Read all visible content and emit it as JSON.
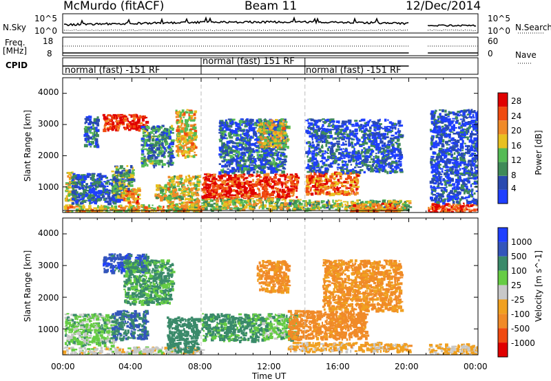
{
  "header": {
    "station": "McMurdo (fitACF)",
    "beam": "Beam 11",
    "date": "12/Dec/2014"
  },
  "top_panels": {
    "left_labels": {
      "nsky": "N.Sky",
      "freq": "Freq.",
      "mhz": "[MHz]",
      "cpid": "CPID"
    },
    "right_labels": {
      "nsearch": "N.Search",
      "nave": "Nave"
    },
    "noise_left_ticks": [
      "10^5",
      "10^0"
    ],
    "noise_right_ticks": [
      "10^5",
      "10^0"
    ],
    "freq_left_ticks": [
      "18",
      "8"
    ],
    "nave_right_ticks": [
      "60",
      "0"
    ],
    "cpid_segments": [
      {
        "label": "normal (fast) -151 RF",
        "start_hour": 0,
        "end_hour": 8
      },
      {
        "label": "normal (fast) 151 RF",
        "start_hour": 8,
        "end_hour": 14
      },
      {
        "label": "normal (fast) -151 RF",
        "start_hour": 14,
        "end_hour": 20
      }
    ]
  },
  "chart_data": [
    {
      "type": "heatmap",
      "parameter": "Power",
      "ylabel": "Slant Range [km]",
      "xlabel": "",
      "xlim_hours": [
        0,
        24
      ],
      "ylim": [
        180,
        4500
      ],
      "yticks": [
        1000,
        2000,
        3000,
        4000
      ],
      "colorbar": {
        "label": "Power [dB]",
        "ticks": [
          "4",
          "8",
          "12",
          "16",
          "20",
          "24",
          "28"
        ],
        "colors": [
          "#1f3fff",
          "#2a4ab0",
          "#3f8a58",
          "#55bb55",
          "#e8c020",
          "#f08a28",
          "#f04b10",
          "#e00000"
        ]
      },
      "data_gap_hours": [
        20,
        21.1
      ],
      "echo_regions": [
        {
          "hours": [
            0.0,
            8.0
          ],
          "range_km": [
            200,
            450
          ],
          "level": 0.6
        },
        {
          "hours": [
            0.1,
            0.6
          ],
          "range_km": [
            600,
            1500
          ],
          "level": 0.55
        },
        {
          "hours": [
            0.5,
            3.5
          ],
          "range_km": [
            500,
            1450
          ],
          "level": 0.15
        },
        {
          "hours": [
            1.2,
            2.0
          ],
          "range_km": [
            2300,
            3300
          ],
          "level": 0.2
        },
        {
          "hours": [
            2.3,
            4.8
          ],
          "range_km": [
            2850,
            3350
          ],
          "level": 0.92
        },
        {
          "hours": [
            2.8,
            4.0
          ],
          "range_km": [
            700,
            1700
          ],
          "level": 0.4
        },
        {
          "hours": [
            3.3,
            4.4
          ],
          "range_km": [
            500,
            1000
          ],
          "level": 0.7
        },
        {
          "hours": [
            4.5,
            6.3
          ],
          "range_km": [
            1700,
            3000
          ],
          "level": 0.3
        },
        {
          "hours": [
            5.3,
            6.4
          ],
          "range_km": [
            600,
            1100
          ],
          "level": 0.5
        },
        {
          "hours": [
            6.0,
            7.8
          ],
          "range_km": [
            300,
            1400
          ],
          "level": 0.55
        },
        {
          "hours": [
            6.5,
            7.6
          ],
          "range_km": [
            2000,
            3500
          ],
          "level": 0.6
        },
        {
          "hours": [
            8.0,
            13.5
          ],
          "range_km": [
            650,
            1450
          ],
          "level": 0.88
        },
        {
          "hours": [
            8.0,
            14.0
          ],
          "range_km": [
            300,
            650
          ],
          "level": 0.5
        },
        {
          "hours": [
            9.0,
            12.8
          ],
          "range_km": [
            1500,
            3200
          ],
          "level": 0.2
        },
        {
          "hours": [
            11.2,
            13.0
          ],
          "range_km": [
            2300,
            3200
          ],
          "level": 0.55
        },
        {
          "hours": [
            14.0,
            17.0
          ],
          "range_km": [
            800,
            1500
          ],
          "level": 0.75
        },
        {
          "hours": [
            13.0,
            20.0
          ],
          "range_km": [
            300,
            600
          ],
          "level": 0.45
        },
        {
          "hours": [
            14.0,
            19.5
          ],
          "range_km": [
            1500,
            3200
          ],
          "level": 0.15
        },
        {
          "hours": [
            16.5,
            19.5
          ],
          "range_km": [
            200,
            500
          ],
          "level": 0.7
        },
        {
          "hours": [
            21.1,
            24.0
          ],
          "range_km": [
            200,
            500
          ],
          "level": 0.85
        },
        {
          "hours": [
            21.2,
            24.0
          ],
          "range_km": [
            500,
            3500
          ],
          "level": 0.12
        }
      ]
    },
    {
      "type": "heatmap",
      "parameter": "Velocity",
      "ylabel": "Slant Range [km]",
      "xlabel": "Time UT",
      "xlim_hours": [
        0,
        24
      ],
      "ylim": [
        180,
        4500
      ],
      "yticks": [
        1000,
        2000,
        3000,
        4000
      ],
      "xticks": [
        "00:00",
        "04:00",
        "08:00",
        "12:00",
        "16:00",
        "20:00",
        "00:00"
      ],
      "colorbar": {
        "label": "Velocity [m s^-1]",
        "ticks": [
          "1000",
          "500",
          "100",
          "25",
          "-25",
          "-100",
          "-500",
          "-1000"
        ],
        "colors": [
          "#1f3fff",
          "#3355bb",
          "#3a8a6a",
          "#66cc44",
          "#c8c8c8",
          "#f0a020",
          "#f08a28",
          "#f04a10",
          "#e00000"
        ]
      },
      "data_gap_hours": [
        20,
        21.1
      ],
      "echo_regions": [
        {
          "hours": [
            0.0,
            8.0
          ],
          "range_km": [
            200,
            450
          ],
          "value": 0
        },
        {
          "hours": [
            0.1,
            3.0
          ],
          "range_km": [
            500,
            1500
          ],
          "value": 60
        },
        {
          "hours": [
            2.3,
            4.8
          ],
          "range_km": [
            2800,
            3400
          ],
          "value": 800
        },
        {
          "hours": [
            2.8,
            4.8
          ],
          "range_km": [
            700,
            1600
          ],
          "value": 500
        },
        {
          "hours": [
            3.5,
            6.3
          ],
          "range_km": [
            1800,
            3200
          ],
          "value": 120
        },
        {
          "hours": [
            6.0,
            7.8
          ],
          "range_km": [
            300,
            1400
          ],
          "value": 300
        },
        {
          "hours": [
            8.0,
            11.5
          ],
          "range_km": [
            650,
            1500
          ],
          "value": 150
        },
        {
          "hours": [
            11.5,
            13.5
          ],
          "range_km": [
            700,
            1500
          ],
          "value": 60
        },
        {
          "hours": [
            11.2,
            13.0
          ],
          "range_km": [
            2200,
            3200
          ],
          "value": -150
        },
        {
          "hours": [
            13.0,
            17.5
          ],
          "range_km": [
            700,
            1600
          ],
          "value": -200
        },
        {
          "hours": [
            13.0,
            20.0
          ],
          "range_km": [
            300,
            600
          ],
          "value": -50
        },
        {
          "hours": [
            15.0,
            19.5
          ],
          "range_km": [
            1600,
            3200
          ],
          "value": -120
        },
        {
          "hours": [
            21.1,
            24.0
          ],
          "range_km": [
            200,
            550
          ],
          "value": -30
        }
      ]
    }
  ]
}
